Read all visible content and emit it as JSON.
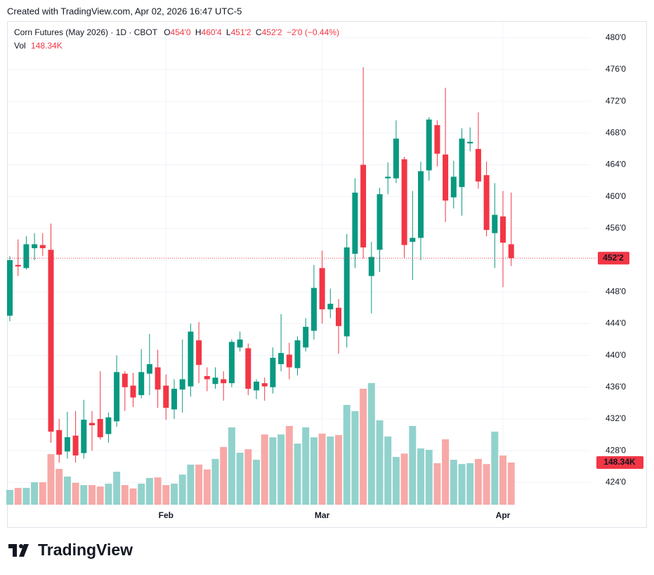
{
  "created": "Created with TradingView.com, Apr 02, 2026 16:47 UTC-5",
  "brand": "TradingView",
  "chart_data": {
    "type": "candlestick",
    "title": "Corn Futures (May 2026) · 1D · CBOT",
    "ohlc_letters": [
      "O",
      "H",
      "L",
      "C"
    ],
    "ohlc_labels": [
      "454'0",
      "460'4",
      "451'2",
      "452'2"
    ],
    "change": "−2'0 (−0.44%)",
    "volume_title": "Vol",
    "last_volume_label": "148.34K",
    "up_color": "#089981",
    "down_color": "#f23645",
    "up_volume_color": "#92d2cc",
    "down_volume_color": "#f7a9a7",
    "grid": true,
    "ylim": [
      421.2,
      482.1
    ],
    "yticks": [
      {
        "value": 424,
        "label": "424'0"
      },
      {
        "value": 428,
        "label": "428'0"
      },
      {
        "value": 432,
        "label": "432'0"
      },
      {
        "value": 436,
        "label": "436'0"
      },
      {
        "value": 440,
        "label": "440'0"
      },
      {
        "value": 444,
        "label": "444'0"
      },
      {
        "value": 448,
        "label": "448'0"
      },
      {
        "value": 452,
        "label": "452'0"
      },
      {
        "value": 456,
        "label": "456'0"
      },
      {
        "value": 460,
        "label": "460'0"
      },
      {
        "value": 464,
        "label": "464'0"
      },
      {
        "value": 468,
        "label": "468'0"
      },
      {
        "value": 472,
        "label": "472'0"
      },
      {
        "value": 476,
        "label": "476'0"
      },
      {
        "value": 480,
        "label": "480'0"
      }
    ],
    "categories": [
      null,
      null,
      null,
      null,
      null,
      null,
      null,
      null,
      null,
      null,
      null,
      null,
      null,
      null,
      null,
      null,
      null,
      null,
      null,
      "Feb",
      null,
      null,
      null,
      null,
      null,
      null,
      null,
      null,
      null,
      null,
      null,
      null,
      null,
      null,
      null,
      null,
      null,
      null,
      "Mar",
      null,
      null,
      null,
      null,
      null,
      null,
      null,
      null,
      null,
      null,
      null,
      null,
      null,
      null,
      null,
      null,
      null,
      null,
      null,
      null,
      null,
      "Apr",
      null
    ],
    "open": [
      445,
      451.4,
      451,
      453.5,
      453.9,
      453.3,
      430.6,
      427.9,
      429.9,
      427.7,
      431.5,
      432,
      430.1,
      431.7,
      437.7,
      436.2,
      435,
      437.7,
      438.5,
      436.2,
      433.2,
      435.7,
      436.1,
      441.9,
      437.4,
      436.4,
      437,
      436.5,
      441,
      440.9,
      435.6,
      436.5,
      436,
      438.9,
      440.1,
      438.4,
      441,
      443.1,
      451,
      445.8,
      446,
      442.4,
      452.8,
      464,
      450,
      453.3,
      462.3,
      462.3,
      464.7,
      454.3,
      454.8,
      463.3,
      469,
      465.3,
      459.9,
      461.2,
      466.7,
      466,
      462.7,
      455.4,
      457.5,
      454
    ],
    "high": [
      452.5,
      454.6,
      455,
      455.4,
      455.4,
      456.6,
      432,
      432.9,
      433,
      434.4,
      433,
      438,
      432.8,
      440,
      438,
      437.8,
      440.8,
      442.7,
      440.7,
      437.6,
      437,
      442,
      444,
      444.2,
      438.5,
      438.5,
      438,
      442,
      443,
      441.5,
      437,
      437.2,
      441,
      445.2,
      441.6,
      442.4,
      444.7,
      451.4,
      453.2,
      448.4,
      447.1,
      455.3,
      462.3,
      476.3,
      454.3,
      461.1,
      464.3,
      469.6,
      465,
      460.7,
      464.4,
      470,
      469.6,
      473.7,
      464.5,
      468.6,
      468.7,
      470.6,
      464.4,
      461.7,
      460.7,
      460.5
    ],
    "low": [
      444.3,
      450,
      450.8,
      452,
      452.5,
      429,
      426.5,
      427,
      426.5,
      427,
      428,
      429.4,
      429,
      431,
      433,
      433.5,
      434.6,
      435,
      433.4,
      431.9,
      432,
      432.8,
      434.8,
      436.5,
      435.5,
      435.8,
      434.3,
      436,
      440.5,
      435,
      434.5,
      434.3,
      435.2,
      438,
      437,
      437.5,
      440.5,
      442,
      444,
      444.7,
      440.2,
      441,
      451,
      452.2,
      445.3,
      450.5,
      460.3,
      461.7,
      452.3,
      449.5,
      452,
      462,
      463.8,
      456.8,
      458.5,
      457.6,
      465.7,
      461,
      455,
      451,
      448.6,
      451.25
    ],
    "close": [
      452,
      451.2,
      454,
      454,
      453.5,
      430.4,
      427.5,
      429.7,
      427.4,
      431.9,
      431.2,
      429.7,
      432.2,
      437.9,
      436,
      434.7,
      437.9,
      438.9,
      435.7,
      433.4,
      435.8,
      437,
      443,
      438.8,
      437,
      437.2,
      436.5,
      441.7,
      442,
      435.8,
      436.7,
      436.1,
      439.7,
      440.3,
      438.5,
      441.9,
      443.6,
      448.5,
      445.8,
      446.5,
      443.7,
      453.6,
      460.5,
      453.6,
      452.4,
      460.3,
      462.5,
      467.3,
      453.9,
      454.8,
      463.2,
      469.7,
      465.4,
      459.5,
      462.5,
      467.3,
      466.9,
      461.9,
      455.8,
      457.7,
      454.2,
      452.25
    ],
    "volume": [
      52,
      59,
      59,
      79,
      79,
      178,
      126,
      99,
      77,
      69,
      69,
      64,
      74,
      116,
      69,
      57,
      74,
      94,
      96,
      69,
      74,
      106,
      141,
      141,
      124,
      161,
      203,
      272,
      183,
      195,
      158,
      247,
      237,
      247,
      277,
      215,
      272,
      237,
      250,
      240,
      245,
      351,
      329,
      408,
      428,
      297,
      240,
      168,
      180,
      277,
      198,
      193,
      146,
      230,
      158,
      143,
      146,
      161,
      143,
      257,
      173,
      148.34
    ]
  }
}
